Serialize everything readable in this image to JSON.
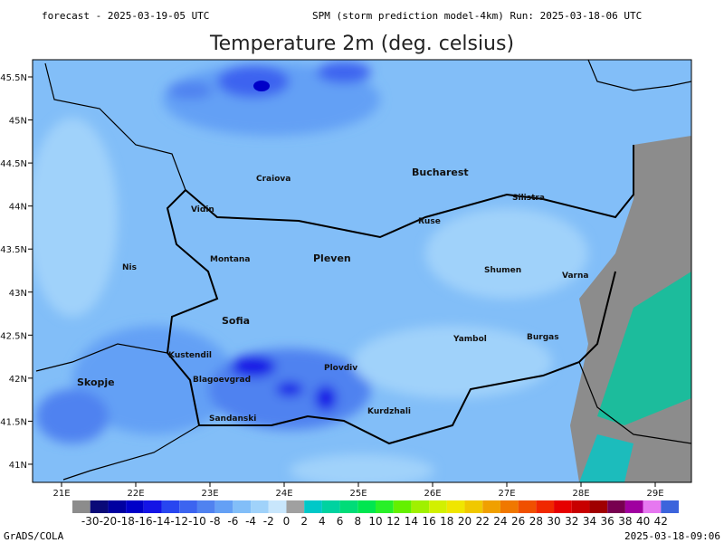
{
  "header": {
    "forecast": "forecast - 2025-03-19-05 UTC",
    "run": "SPM (storm prediction model-4km) Run: 2025-03-18-06 UTC",
    "title": "Temperature 2m (deg. celsius)"
  },
  "map": {
    "lon_labels": [
      "21E",
      "22E",
      "23E",
      "24E",
      "25E",
      "26E",
      "27E",
      "28E",
      "29E"
    ],
    "lat_labels": [
      "45.5N",
      "45N",
      "44.5N",
      "44N",
      "43.5N",
      "43N",
      "42.5N",
      "42N",
      "41.5N",
      "41N"
    ],
    "cities": [
      "Craiova",
      "Bucharest",
      "Silistra",
      "Vidin",
      "Ruse",
      "Nis",
      "Montana",
      "Pleven",
      "Shumen",
      "Varna",
      "Sofia",
      "Yambol",
      "Burgas",
      "Kustendil",
      "Plovdiv",
      "Skopje",
      "Blagoevgrad",
      "Sandanski",
      "Kurdzhali"
    ]
  },
  "colorbar": {
    "labels": [
      "-30",
      "-20",
      "-18",
      "-16",
      "-14",
      "-12",
      "-10",
      "-8",
      "-6",
      "-4",
      "-2",
      "0",
      "2",
      "4",
      "6",
      "8",
      "10",
      "12",
      "14",
      "16",
      "18",
      "20",
      "22",
      "24",
      "26",
      "28",
      "30",
      "32",
      "34",
      "36",
      "38",
      "40",
      "42"
    ],
    "colors": [
      "#8c8c8c",
      "#0a0a78",
      "#0000a0",
      "#0000c8",
      "#1414e6",
      "#2846f0",
      "#3c64f0",
      "#5082f0",
      "#64a0f5",
      "#82bef8",
      "#a0d2fa",
      "#c8e6fc",
      "#a0a0a0",
      "#00c8c8",
      "#00d2a0",
      "#00dc78",
      "#00e650",
      "#28f028",
      "#64f000",
      "#a0f000",
      "#d2f000",
      "#f0e600",
      "#f0c800",
      "#f0a000",
      "#f07800",
      "#f05000",
      "#f02800",
      "#e60000",
      "#c80000",
      "#a00000",
      "#780050",
      "#a000a0",
      "#e678f0",
      "#3c64dc"
    ]
  },
  "footer": {
    "left": "GrADS/COLA",
    "right": "2025-03-18-09:06"
  }
}
